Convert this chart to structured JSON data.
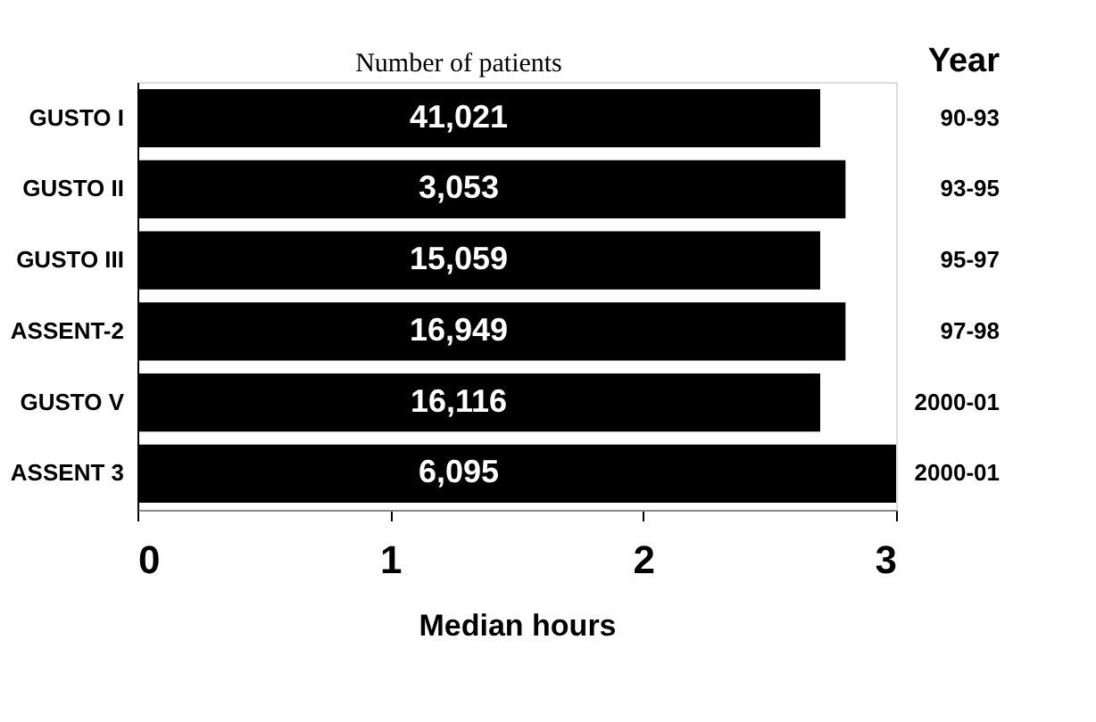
{
  "chart_data": {
    "type": "bar",
    "orientation": "horizontal",
    "categories": [
      "GUSTO I",
      "GUSTO II",
      "GUSTO III",
      "ASSENT-2",
      "GUSTO V",
      "ASSENT 3"
    ],
    "values": [
      2.7,
      2.8,
      2.7,
      2.8,
      2.7,
      3.0
    ],
    "color": "#000000",
    "y2_categories": [
      "90-93",
      "93-95",
      "95-97",
      "97-98",
      "2000-01",
      "2000-01"
    ],
    "y2label": "Year",
    "annotations": [
      "Number of patients",
      {
        "text": "41,021",
        "y": "GUSTO I"
      },
      {
        "text": "3,053",
        "y": "GUSTO II"
      },
      {
        "text": "15,059",
        "y": "GUSTO III"
      },
      {
        "text": "16,949",
        "y": "ASSENT-2"
      },
      {
        "text": "16,116",
        "y": "GUSTO V"
      },
      {
        "text": "6,095",
        "y": "ASSENT 3"
      }
    ],
    "xlabel": "Median hours",
    "xlim": [
      0,
      3
    ],
    "xticks": [
      0,
      1,
      2,
      3
    ],
    "grid": false
  }
}
